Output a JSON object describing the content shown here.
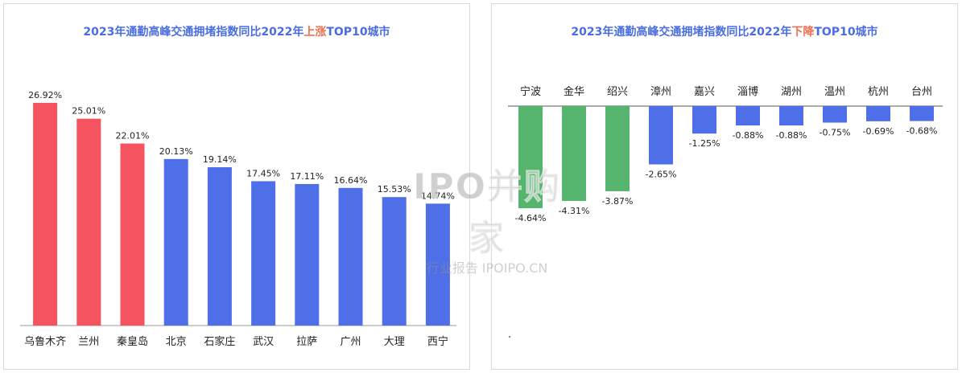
{
  "watermark": {
    "main": "IPO并购家",
    "sub": "行业报告 IPOIPO.CN"
  },
  "chart_data": [
    {
      "type": "bar",
      "title_parts": [
        "2023年通勤高峰交通拥堵指数同比2022年",
        "上涨",
        "TOP10城市"
      ],
      "categories": [
        "乌鲁木齐",
        "兰州",
        "秦皇岛",
        "北京",
        "石家庄",
        "武汉",
        "拉萨",
        "广州",
        "大理",
        "西宁"
      ],
      "values": [
        26.92,
        25.01,
        22.01,
        20.13,
        19.14,
        17.45,
        17.11,
        16.64,
        15.53,
        14.74
      ],
      "value_labels": [
        "26.92%",
        "25.01%",
        "22.01%",
        "20.13%",
        "19.14%",
        "17.45%",
        "17.11%",
        "16.64%",
        "15.53%",
        "14.74%"
      ],
      "colors": [
        "#f5535f",
        "#f5535f",
        "#f5535f",
        "#4f6fe8",
        "#4f6fe8",
        "#4f6fe8",
        "#4f6fe8",
        "#4f6fe8",
        "#4f6fe8",
        "#4f6fe8"
      ],
      "ylim": [
        0,
        30
      ],
      "grid": false,
      "xlabel": "",
      "ylabel": ""
    },
    {
      "type": "bar",
      "title_parts": [
        "2023年通勤高峰交通拥堵指数同比2022年",
        "下降",
        "TOP10城市"
      ],
      "categories": [
        "宁波",
        "金华",
        "绍兴",
        "漳州",
        "嘉兴",
        "淄博",
        "湖州",
        "温州",
        "杭州",
        "台州"
      ],
      "values": [
        -4.64,
        -4.31,
        -3.87,
        -2.65,
        -1.25,
        -0.88,
        -0.88,
        -0.75,
        -0.69,
        -0.68
      ],
      "value_labels": [
        "-4.64%",
        "-4.31%",
        "-3.87%",
        "-2.65%",
        "-1.25%",
        "-0.88%",
        "-0.88%",
        "-0.75%",
        "-0.69%",
        "-0.68%"
      ],
      "colors": [
        "#55b56e",
        "#55b56e",
        "#55b56e",
        "#4f6fe8",
        "#4f6fe8",
        "#4f6fe8",
        "#4f6fe8",
        "#4f6fe8",
        "#4f6fe8",
        "#4f6fe8"
      ],
      "ylim": [
        -5,
        0
      ],
      "grid": false,
      "xlabel": "",
      "ylabel": ""
    }
  ]
}
